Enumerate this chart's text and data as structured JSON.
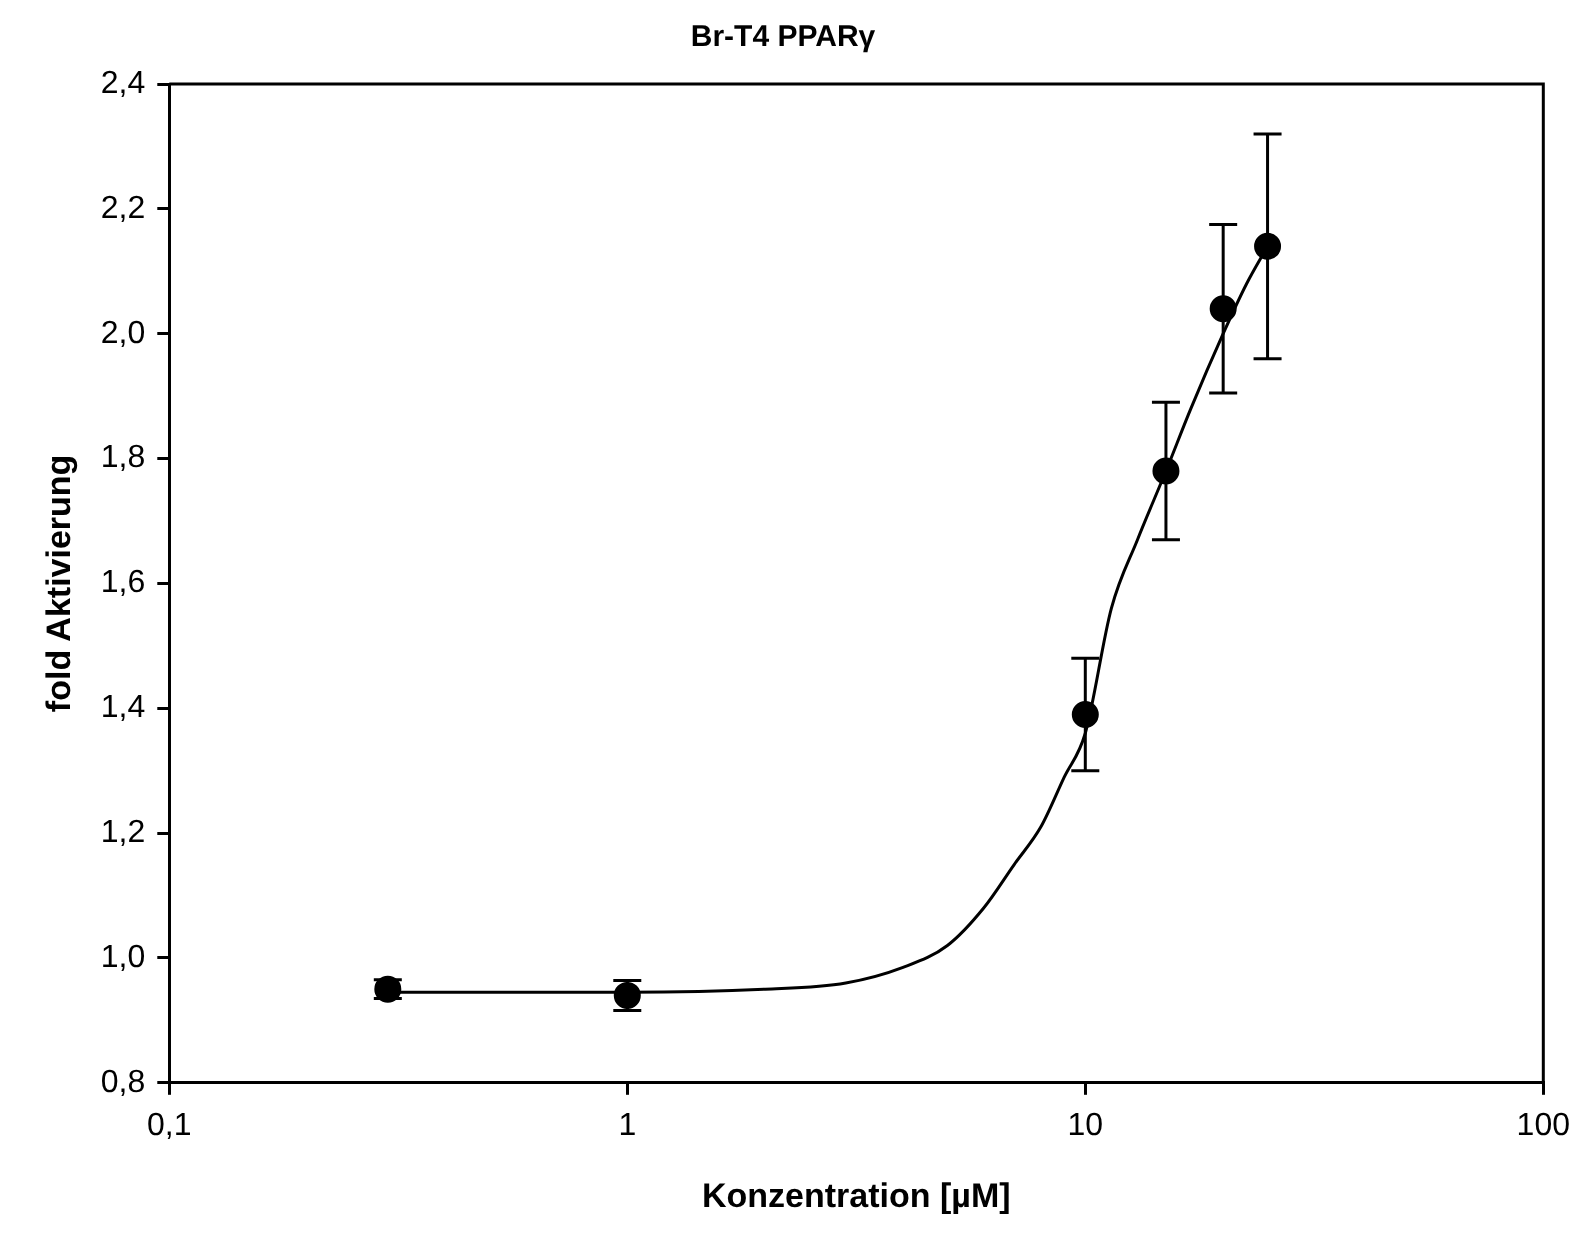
{
  "chart_data": {
    "type": "scatter",
    "title": "Br-T4 PPARγ",
    "xlabel": "Konzentration [µM]",
    "ylabel": "fold Aktivierung",
    "log": "x",
    "grid": false,
    "legend": false,
    "marker": "circle",
    "xlim": [
      0.1,
      100
    ],
    "xticks": [
      {
        "value": 0.1,
        "label": "0,1"
      },
      1,
      10,
      100
    ],
    "ylim": [
      0.8,
      2.4
    ],
    "yticks": [
      {
        "value": 0.8,
        "label": "0,8"
      },
      {
        "value": 1.0,
        "label": "1,0"
      },
      {
        "value": 1.2,
        "label": "1,2"
      },
      {
        "value": 1.4,
        "label": "1,4"
      },
      {
        "value": 1.6,
        "label": "1,6"
      },
      {
        "value": 1.8,
        "label": "1,8"
      },
      {
        "value": 2.0,
        "label": "2,0"
      },
      {
        "value": 2.2,
        "label": "2,2"
      },
      {
        "value": 2.4,
        "label": "2,4"
      }
    ],
    "series": [
      {
        "type": "line",
        "color": "#000000",
        "marker": "none",
        "line_style": "solid",
        "x": [
          0.3,
          1,
          2,
          3,
          4,
          5,
          6,
          7,
          8,
          9,
          10,
          11.4,
          13,
          15,
          17,
          20,
          22.5,
          25
        ],
        "values": [
          0.945,
          0.945,
          0.95,
          0.96,
          0.985,
          1.02,
          1.08,
          1.15,
          1.21,
          1.29,
          1.36,
          1.56,
          1.67,
          1.78,
          1.88,
          2.0,
          2.08,
          2.14
        ]
      },
      {
        "type": "scatter",
        "color": "#000000",
        "x": [
          0.3,
          1,
          10,
          15,
          20,
          25
        ],
        "values": [
          0.95,
          0.94,
          1.39,
          1.78,
          2.04,
          2.14
        ],
        "errors": [
          0.015,
          0.024,
          0.09,
          0.11,
          0.135,
          0.18
        ]
      }
    ]
  }
}
